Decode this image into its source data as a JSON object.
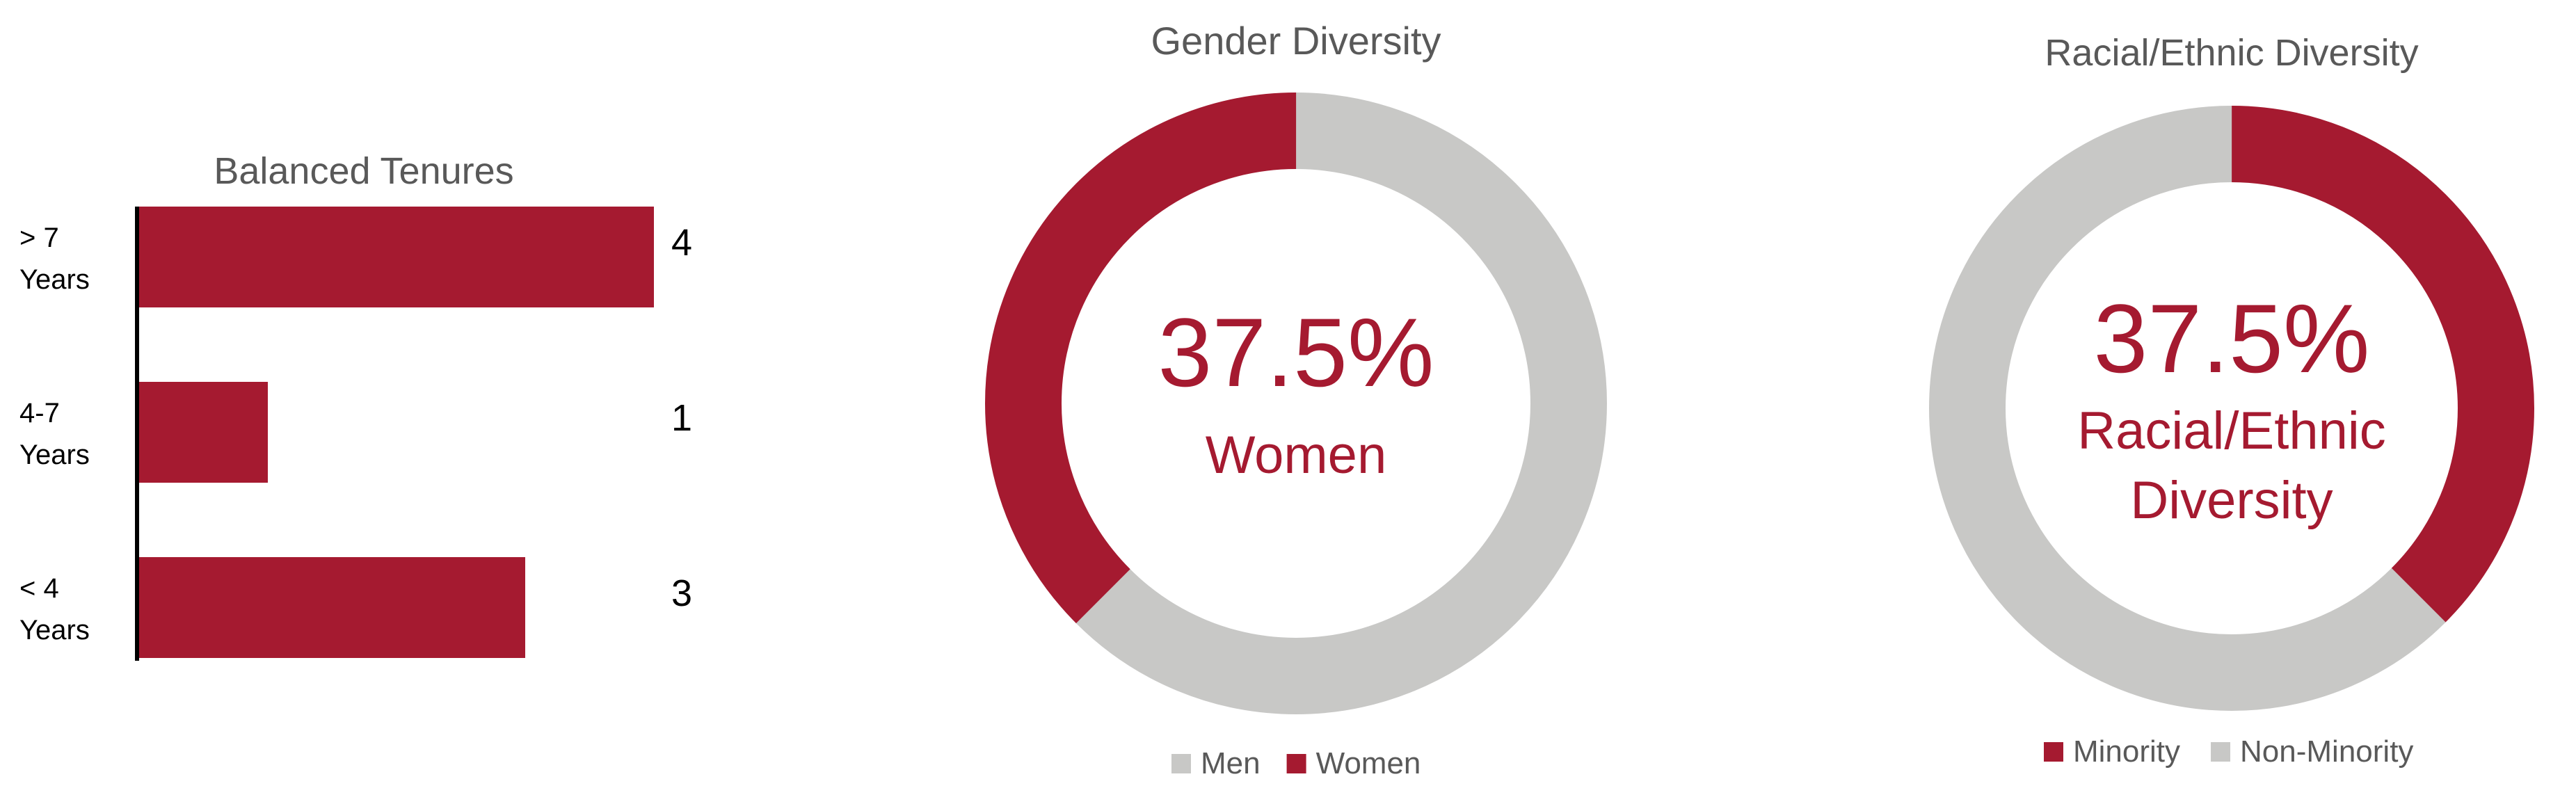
{
  "colors": {
    "accent": "#A51A30",
    "neutral": "#C8C8C6",
    "axis": "#000000",
    "title": "#595959"
  },
  "chart_data": [
    {
      "type": "bar",
      "orientation": "horizontal",
      "title": "Balanced Tenures",
      "categories": [
        {
          "line1": "> 7",
          "line2": "Years"
        },
        {
          "line1": "4-7",
          "line2": "Years"
        },
        {
          "line1": "< 4",
          "line2": "Years"
        }
      ],
      "values": [
        4,
        1,
        3
      ],
      "xlim": [
        0,
        4
      ],
      "grid": false,
      "legend": "none"
    },
    {
      "type": "pie",
      "donut": true,
      "title": "Gender Diversity",
      "slices": [
        {
          "label": "Men",
          "value": 62.5,
          "color": "#C8C8C6"
        },
        {
          "label": "Women",
          "value": 37.5,
          "color": "#A51A30"
        }
      ],
      "center_value": "37.5%",
      "center_label": [
        "Women"
      ],
      "legend_order": [
        "Men",
        "Women"
      ],
      "legend": "bottom"
    },
    {
      "type": "pie",
      "donut": true,
      "title": "Racial/Ethnic Diversity",
      "slices": [
        {
          "label": "Minority",
          "value": 37.5,
          "color": "#A51A30"
        },
        {
          "label": "Non-Minority",
          "value": 62.5,
          "color": "#C8C8C6"
        }
      ],
      "center_value": "37.5%",
      "center_label": [
        "Racial/Ethnic",
        "Diversity"
      ],
      "legend_order": [
        "Minority",
        "Non-Minority"
      ],
      "legend": "bottom"
    }
  ]
}
